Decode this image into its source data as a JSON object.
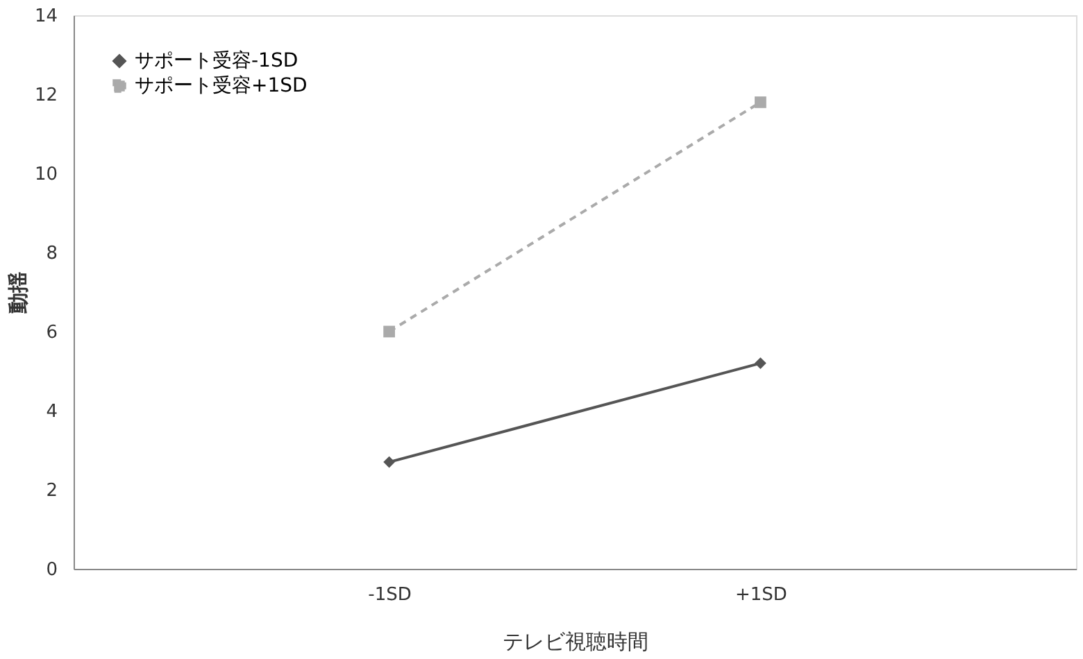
{
  "chart_data": {
    "type": "line",
    "xlabel": "テレビ視聴時間",
    "ylabel": "動揺",
    "categories": [
      "-1SD",
      "+1SD"
    ],
    "series": [
      {
        "name": "サポート受容-1SD",
        "color": "#555555",
        "values": [
          2.7,
          5.2
        ],
        "marker": "diamond",
        "line_style": "solid"
      },
      {
        "name": "サポート受容+1SD",
        "color": "#aaaaaa",
        "values": [
          6.0,
          11.8
        ],
        "marker": "square",
        "line_style": "dashed"
      }
    ],
    "ylim": [
      0,
      14
    ],
    "yticks": [
      0,
      2,
      4,
      6,
      8,
      10,
      12,
      14
    ],
    "grid": false,
    "legend": "top left"
  }
}
